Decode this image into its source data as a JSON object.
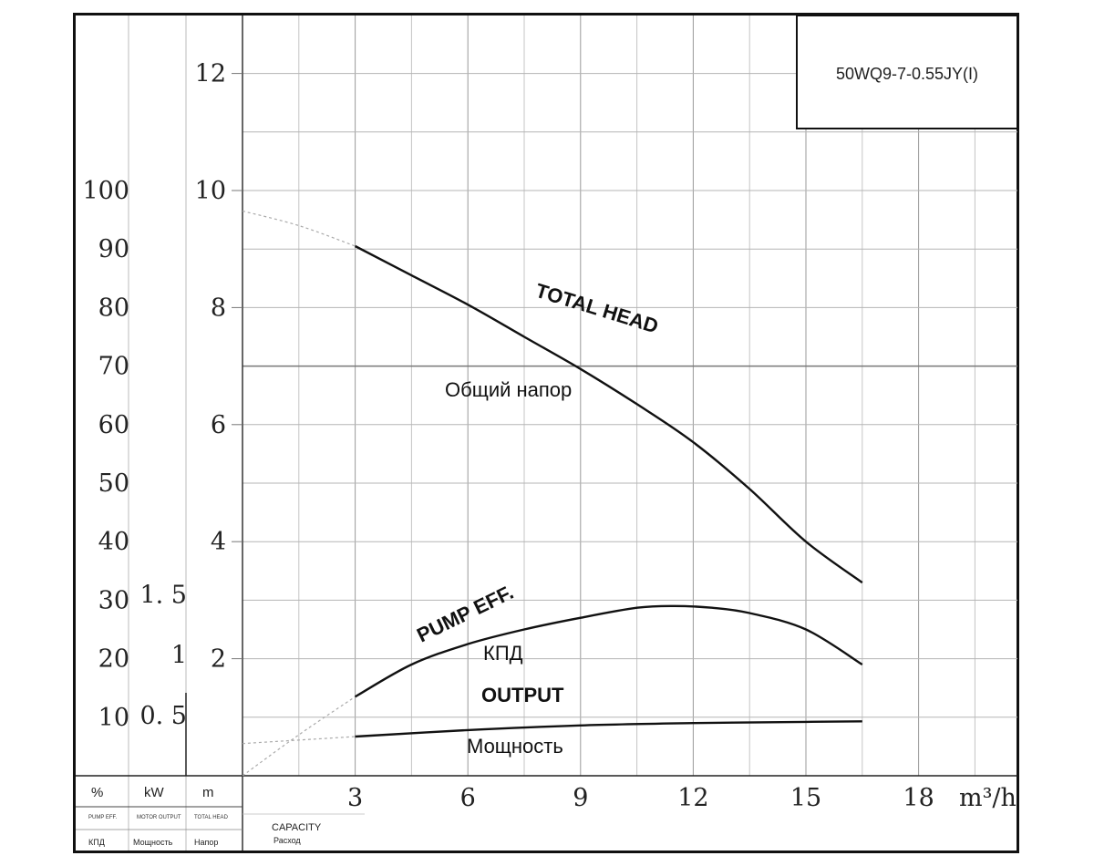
{
  "chart_data": {
    "type": "line",
    "model": "50WQ9-7-0.55JY(I)",
    "x_axis": {
      "label": "CAPACITY",
      "label_ru": "Расход",
      "unit": "m³/h",
      "ticks": [
        "3",
        "6",
        "9",
        "12",
        "15",
        "18"
      ],
      "range": [
        0,
        20.5
      ]
    },
    "y_axes": {
      "efficiency": {
        "unit": "%",
        "label": "PUMP EFF.",
        "label_ru": "КПД",
        "ticks": [
          "10",
          "20",
          "30",
          "40",
          "50",
          "60",
          "70",
          "80",
          "90",
          "100"
        ]
      },
      "power": {
        "unit": "kW",
        "label": "MOTOR OUTPUT",
        "label_ru": "Мощность",
        "ticks": [
          "0. 5",
          "1",
          "1. 5"
        ]
      },
      "head": {
        "unit": "m",
        "label": "TOTAL HEAD",
        "label_ru": "Напор",
        "ticks": [
          "2",
          "4",
          "6",
          "8",
          "10",
          "12"
        ],
        "range": [
          0,
          13
        ]
      }
    },
    "series": [
      {
        "name": "TOTAL HEAD",
        "name_ru": "Общий напор",
        "axis": "head",
        "x": [
          0,
          1.5,
          3,
          4.5,
          6,
          7.5,
          9,
          10.5,
          12,
          13.5,
          15,
          16.5
        ],
        "y": [
          9.65,
          9.4,
          9.05,
          8.55,
          8.05,
          7.5,
          6.95,
          6.35,
          5.7,
          4.9,
          4.0,
          3.3
        ],
        "dashed_until": 3
      },
      {
        "name": "PUMP EFF.",
        "name_ru": "КПД",
        "axis": "efficiency",
        "x": [
          0,
          1.5,
          3,
          4.5,
          6,
          7.5,
          9,
          10.5,
          11.5,
          12.5,
          13.5,
          15,
          16.5
        ],
        "y": [
          0,
          7,
          13.5,
          19,
          22.5,
          25,
          27,
          28.7,
          29,
          28.7,
          27.8,
          25,
          19
        ],
        "dashed_until": 3
      },
      {
        "name": "OUTPUT",
        "name_ru": "Мощность",
        "axis": "efficiency",
        "x": [
          0,
          3,
          6,
          9,
          12,
          15,
          16.5
        ],
        "y": [
          5.5,
          6.7,
          7.8,
          8.6,
          9.0,
          9.2,
          9.3
        ],
        "dashed_until": 3
      }
    ],
    "legend": {
      "col_pct": "%",
      "col_kw": "kW",
      "col_m": "m",
      "sub_pct": "PUMP EFF.",
      "sub_kw": "MOTOR OUTPUT",
      "sub_m": "TOTAL HEAD",
      "ru_pct": "КПД",
      "ru_kw": "Мощность",
      "ru_m": "Напор"
    }
  }
}
